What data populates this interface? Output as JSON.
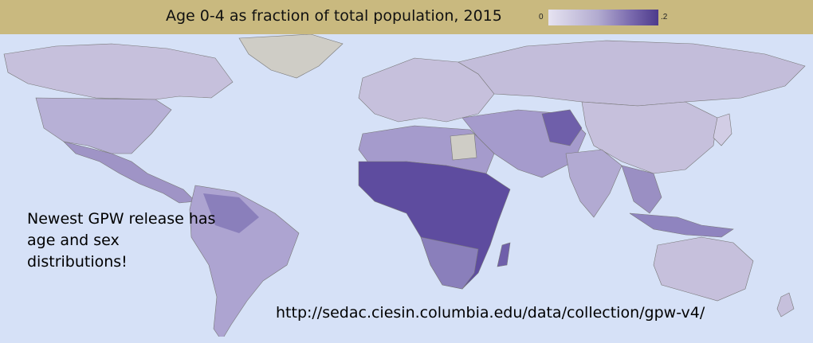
{
  "map": {
    "title": "Age 0-4 as fraction of total population, 2015",
    "legend": {
      "min_label": "0",
      "max_label": ".2"
    },
    "colors": {
      "background": "#d6e1f7",
      "title_bar": "#c9b97f",
      "no_data": "#cfcdc6",
      "low": "#c6c0dc",
      "mid": "#9f94c6",
      "high": "#56449a"
    }
  },
  "annotation": {
    "note": "Newest GPW release has age and sex distributions!",
    "url": "http://sedac.ciesin.columbia.edu/data/collection/gpw-v4/"
  }
}
